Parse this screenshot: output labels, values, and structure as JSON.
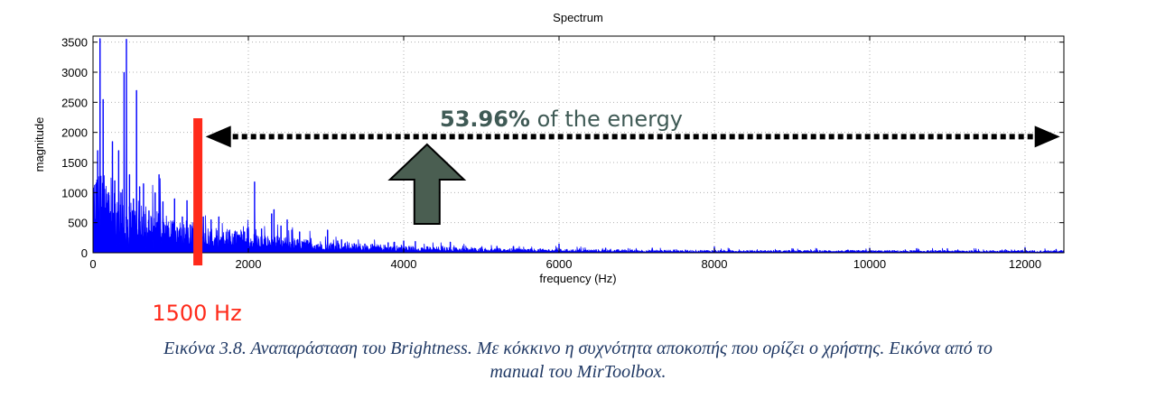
{
  "chart_data": {
    "type": "line",
    "title": "Spectrum",
    "xlabel": "frequency (Hz)",
    "ylabel": "magnitude",
    "xlim": [
      0,
      12500
    ],
    "ylim": [
      0,
      3600
    ],
    "xticks": [
      "0",
      "2000",
      "4000",
      "6000",
      "8000",
      "10000",
      "12000"
    ],
    "yticks": [
      "0",
      "500",
      "1000",
      "1500",
      "2000",
      "2500",
      "3000",
      "3500"
    ],
    "series_color": "#0000ff",
    "peaks": [
      {
        "x": 60,
        "y": 1700
      },
      {
        "x": 90,
        "y": 3560
      },
      {
        "x": 130,
        "y": 2550
      },
      {
        "x": 200,
        "y": 1000
      },
      {
        "x": 250,
        "y": 1850
      },
      {
        "x": 280,
        "y": 1200
      },
      {
        "x": 330,
        "y": 1700
      },
      {
        "x": 360,
        "y": 1000
      },
      {
        "x": 400,
        "y": 3000
      },
      {
        "x": 430,
        "y": 3550
      },
      {
        "x": 470,
        "y": 1300
      },
      {
        "x": 520,
        "y": 900
      },
      {
        "x": 560,
        "y": 2700
      },
      {
        "x": 600,
        "y": 1100
      },
      {
        "x": 650,
        "y": 1150
      },
      {
        "x": 720,
        "y": 700
      },
      {
        "x": 800,
        "y": 1000
      },
      {
        "x": 850,
        "y": 1300
      },
      {
        "x": 900,
        "y": 850
      },
      {
        "x": 960,
        "y": 450
      },
      {
        "x": 1050,
        "y": 900
      },
      {
        "x": 1150,
        "y": 600
      },
      {
        "x": 1210,
        "y": 870
      },
      {
        "x": 1300,
        "y": 450
      },
      {
        "x": 1360,
        "y": 500
      },
      {
        "x": 1420,
        "y": 600
      },
      {
        "x": 1520,
        "y": 550
      },
      {
        "x": 1620,
        "y": 600
      },
      {
        "x": 1750,
        "y": 250
      },
      {
        "x": 1850,
        "y": 350
      },
      {
        "x": 1950,
        "y": 350
      },
      {
        "x": 2000,
        "y": 400
      },
      {
        "x": 2080,
        "y": 1180
      },
      {
        "x": 2170,
        "y": 400
      },
      {
        "x": 2300,
        "y": 650
      },
      {
        "x": 2330,
        "y": 720
      },
      {
        "x": 2420,
        "y": 450
      },
      {
        "x": 2500,
        "y": 550
      },
      {
        "x": 2560,
        "y": 380
      },
      {
        "x": 2660,
        "y": 350
      },
      {
        "x": 2750,
        "y": 200
      },
      {
        "x": 3020,
        "y": 380
      },
      {
        "x": 3150,
        "y": 200
      },
      {
        "x": 3200,
        "y": 220
      },
      {
        "x": 3500,
        "y": 150
      },
      {
        "x": 3800,
        "y": 170
      },
      {
        "x": 3880,
        "y": 180
      },
      {
        "x": 4000,
        "y": 200
      },
      {
        "x": 4150,
        "y": 190
      },
      {
        "x": 4500,
        "y": 110
      },
      {
        "x": 4600,
        "y": 180
      },
      {
        "x": 5000,
        "y": 90
      },
      {
        "x": 5200,
        "y": 110
      },
      {
        "x": 6000,
        "y": 150
      },
      {
        "x": 6600,
        "y": 80
      },
      {
        "x": 7200,
        "y": 80
      },
      {
        "x": 8000,
        "y": 100
      },
      {
        "x": 9000,
        "y": 70
      },
      {
        "x": 10000,
        "y": 80
      },
      {
        "x": 11000,
        "y": 70
      },
      {
        "x": 12000,
        "y": 90
      },
      {
        "x": 12400,
        "y": 60
      }
    ],
    "annotations": {
      "energy_pct": "53.96%",
      "energy_text": " of the energy",
      "cutoff_label": "1500 Hz",
      "cutoff_x": 1350,
      "arrow_from_x": 1450,
      "arrow_to_x": 12450,
      "arrow_y": 1930,
      "up_arrow_x": 4300,
      "cutoff_color": "#ff2a1a",
      "arrow_color": "#4a5e51"
    }
  },
  "caption": {
    "line1": "Εικόνα 3.8. Αναπαράσταση του Brightness. Με κόκκινο η συχνότητα αποκοπής που ορίζει ο χρήστης. Εικόνα από το",
    "line2": "manual του MirToolbox."
  }
}
